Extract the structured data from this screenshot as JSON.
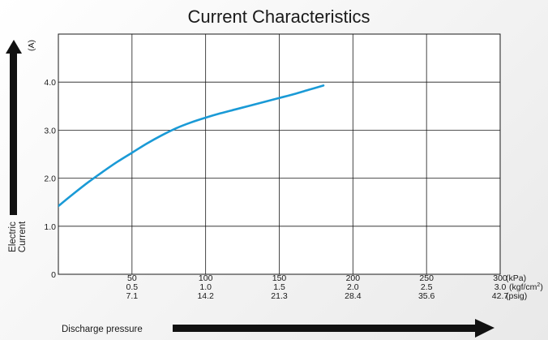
{
  "chart_data": {
    "type": "line",
    "title": "Current  Characteristics",
    "xlabel": "Discharge pressure",
    "ylabel_lines": [
      "Electric",
      "Current"
    ],
    "y_unit": "(A)",
    "xlim": [
      0,
      300
    ],
    "ylim": [
      0,
      5
    ],
    "y_ticks": [
      {
        "value": 0,
        "label": "0"
      },
      {
        "value": 1,
        "label": "1.0"
      },
      {
        "value": 2,
        "label": "2.0"
      },
      {
        "value": 3,
        "label": "3.0"
      },
      {
        "value": 4,
        "label": "4.0"
      }
    ],
    "x_ticks": [
      {
        "value": 50,
        "kpa": "50",
        "kgf": "0.5",
        "psig": "7.1"
      },
      {
        "value": 100,
        "kpa": "100",
        "kgf": "1.0",
        "psig": "14.2"
      },
      {
        "value": 150,
        "kpa": "150",
        "kgf": "1.5",
        "psig": "21.3"
      },
      {
        "value": 200,
        "kpa": "200",
        "kgf": "2.0",
        "psig": "28.4"
      },
      {
        "value": 250,
        "kpa": "250",
        "kgf": "2.5",
        "psig": "35.6"
      },
      {
        "value": 300,
        "kpa": "300",
        "kgf": "3.0",
        "psig": "42.7"
      }
    ],
    "x_units": {
      "kpa": "(kPa)",
      "kgf": "(kgf/cm",
      "kgf_sup": "2",
      "kgf_close": ")",
      "psig": "(psig)"
    },
    "series": [
      {
        "color": "#1a9ad6",
        "x": [
          0,
          10,
          20,
          30,
          40,
          50,
          60,
          70,
          80,
          90,
          100,
          110,
          120,
          130,
          140,
          150,
          160,
          170,
          180
        ],
        "y": [
          1.42,
          1.67,
          1.91,
          2.13,
          2.34,
          2.53,
          2.72,
          2.89,
          3.04,
          3.16,
          3.26,
          3.35,
          3.43,
          3.51,
          3.59,
          3.67,
          3.75,
          3.84,
          3.93
        ]
      }
    ]
  }
}
